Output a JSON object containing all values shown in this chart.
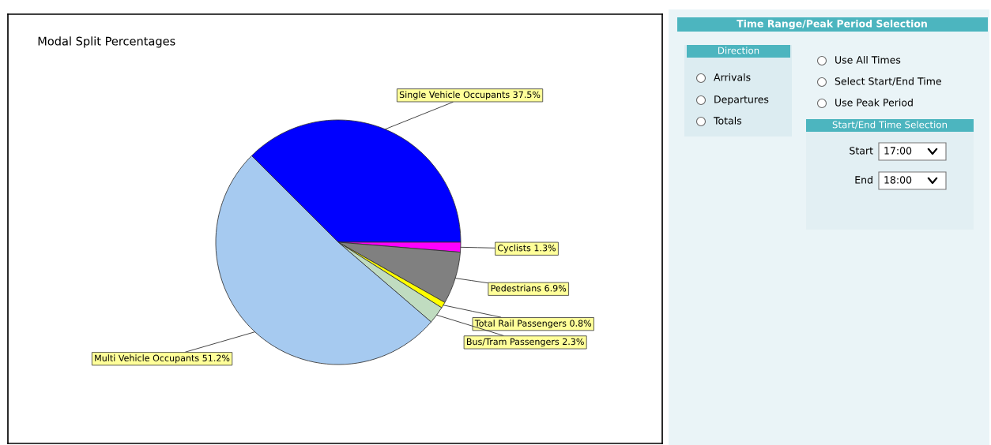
{
  "chart_data": [
    {
      "type": "pie",
      "title": "Modal Split Percentages",
      "categories": [
        "Single Vehicle Occupants",
        "Cyclists",
        "Pedestrians",
        "Total Rail Passengers",
        "Bus/Tram Passengers",
        "Multi Vehicle Occupants"
      ],
      "values": [
        37.5,
        1.3,
        6.9,
        0.8,
        2.3,
        51.2
      ],
      "value_labels": [
        "37.5%",
        "1.3%",
        "6.9%",
        "0.8%",
        "2.3%",
        "51.2%"
      ],
      "colors": [
        "#0000ff",
        "#ff00ff",
        "#808080",
        "#ffff00",
        "#c0dcc0",
        "#a6caf0"
      ]
    },
    {
      "type": "other",
      "title": "Time Range/Peak Period Selection",
      "annotations": [
        "Direction",
        "Arrivals",
        "Departures",
        "Totals",
        "Use All Times",
        "Select Start/End Time",
        "Use Peak Period",
        "Start/End Time Selection",
        "Start",
        "17:00",
        "End",
        "18:00"
      ]
    }
  ]
}
